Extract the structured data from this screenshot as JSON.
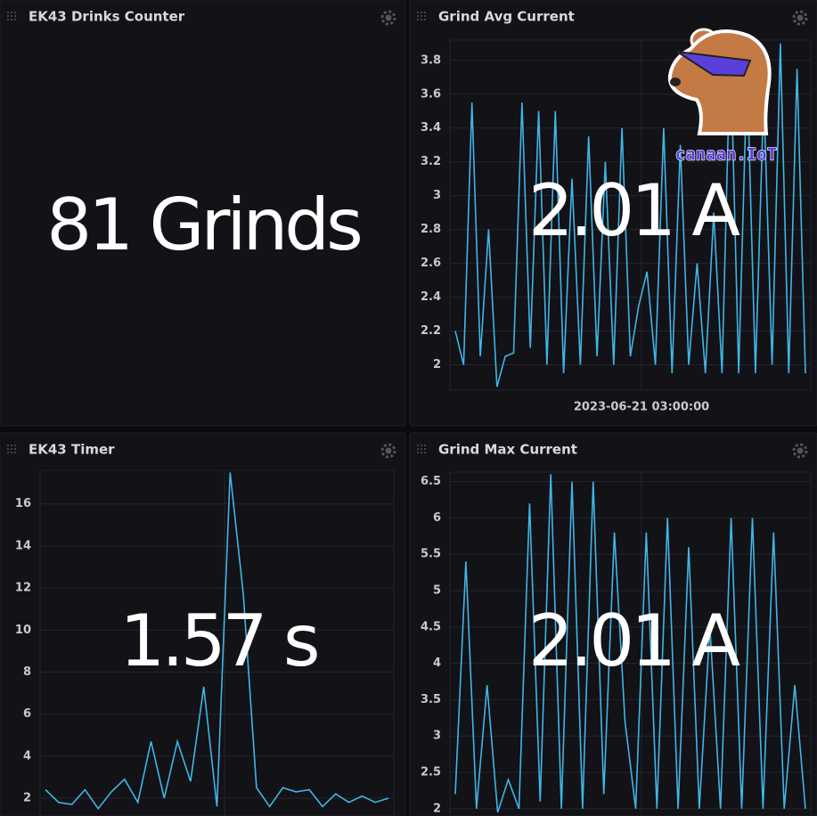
{
  "logo": "canaan.IoT",
  "panels": [
    {
      "title": "EK43 Drinks Counter",
      "value": "81 Grinds"
    },
    {
      "title": "Grind Avg Current",
      "value": "2.01 A",
      "chart": {
        "type": "line",
        "color": "#3fb6e6",
        "ylim": [
          1.85,
          3.92
        ],
        "yticks": [
          2,
          2.2,
          2.4,
          2.6,
          2.8,
          3,
          3.2,
          3.4,
          3.6,
          3.8
        ],
        "xlabel": "2023-06-21 03:00:00",
        "values": [
          2.2,
          2.0,
          3.55,
          2.05,
          2.8,
          1.87,
          2.05,
          2.07,
          3.55,
          2.1,
          3.5,
          2.0,
          3.5,
          1.95,
          3.1,
          2.0,
          3.35,
          2.05,
          3.2,
          2.0,
          3.4,
          2.05,
          2.35,
          2.55,
          2.0,
          3.4,
          1.95,
          3.3,
          2.0,
          2.6,
          1.95,
          2.9,
          1.95,
          3.9,
          1.95,
          3.75,
          1.95,
          3.6,
          2.0,
          3.9,
          1.95,
          3.75,
          1.95
        ]
      }
    },
    {
      "title": "EK43 Timer",
      "value": "1.57 s",
      "chart": {
        "type": "line",
        "color": "#3fb6e6",
        "ylim": [
          1.15,
          17.6
        ],
        "yticks": [
          2,
          4,
          6,
          8,
          10,
          12,
          14,
          16
        ],
        "values": [
          2.4,
          1.8,
          1.7,
          2.4,
          1.5,
          2.3,
          2.9,
          1.8,
          4.7,
          2.0,
          4.7,
          2.8,
          7.3,
          1.6,
          17.5,
          11.7,
          2.5,
          1.6,
          2.5,
          2.3,
          2.4,
          1.6,
          2.2,
          1.8,
          2.1,
          1.8,
          2.0
        ]
      }
    },
    {
      "title": "Grind Max Current",
      "value": "2.01 A",
      "chart": {
        "type": "line",
        "color": "#3fb6e6",
        "ylim": [
          1.9,
          6.63
        ],
        "yticks": [
          2,
          2.5,
          3,
          3.5,
          4,
          4.5,
          5,
          5.5,
          6,
          6.5
        ],
        "values": [
          2.2,
          5.4,
          2.0,
          3.7,
          1.95,
          2.4,
          2.0,
          6.2,
          2.1,
          6.6,
          2.0,
          6.5,
          2.0,
          6.5,
          2.2,
          5.8,
          3.2,
          2.0,
          5.8,
          2.0,
          6.0,
          2.0,
          5.6,
          2.0,
          4.5,
          2.0,
          6.0,
          2.0,
          6.0,
          2.0,
          5.8,
          2.0,
          3.7,
          2.0
        ]
      }
    }
  ]
}
